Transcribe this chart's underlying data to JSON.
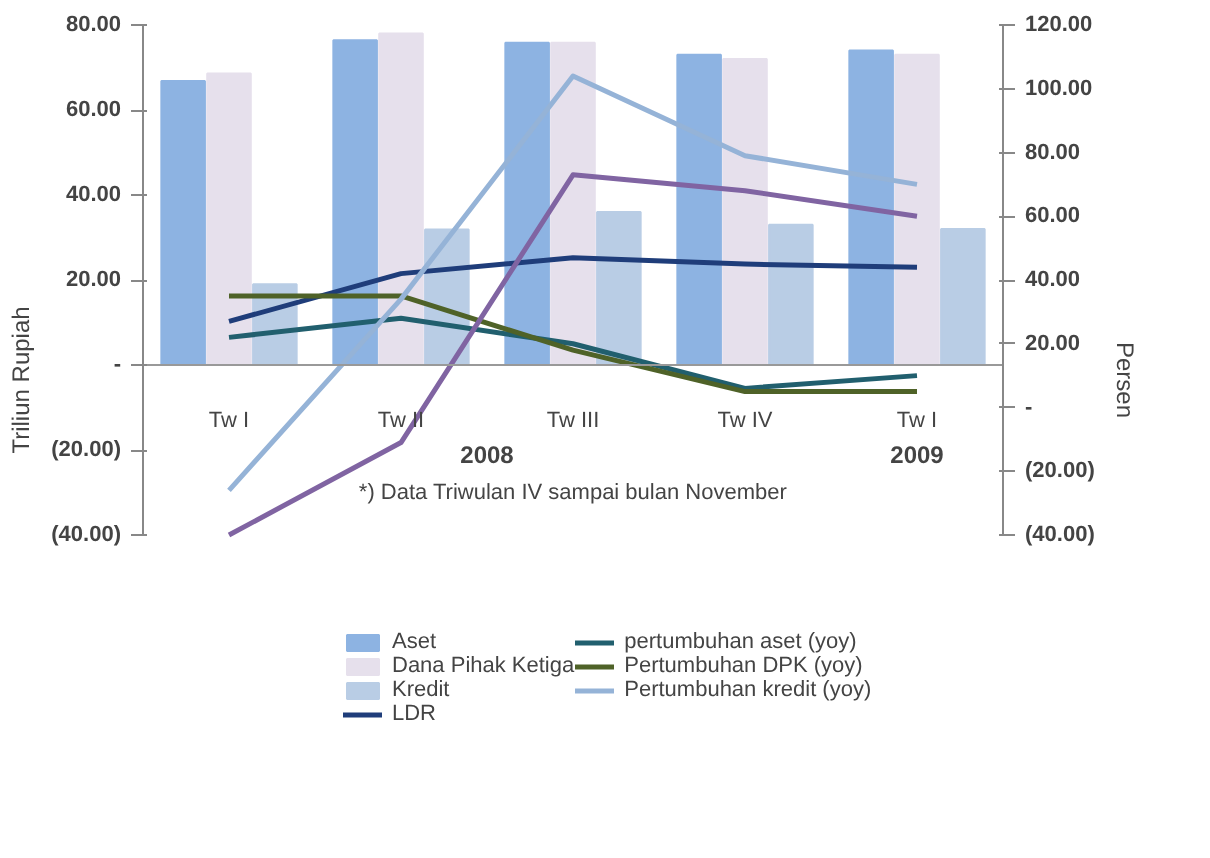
{
  "chart_data": {
    "type": "bar",
    "categories": [
      "Tw I",
      "Tw II",
      "Tw III",
      "Tw IV",
      "Tw I"
    ],
    "ylabel": "Triliun Rupiah",
    "y2label": "Persen",
    "ylim": [
      -40,
      80
    ],
    "yticks": [
      {
        "value": -40,
        "label": "(40.00)"
      },
      {
        "value": -20,
        "label": "(20.00)"
      },
      {
        "value": 0,
        "label": "-"
      },
      {
        "value": 20,
        "label": "20.00"
      },
      {
        "value": 40,
        "label": "40.00"
      },
      {
        "value": 60,
        "label": "60.00"
      },
      {
        "value": 80,
        "label": "80.00"
      }
    ],
    "y2lim": [
      -40,
      120
    ],
    "y2ticks": [
      {
        "value": -40,
        "label": "(40.00)"
      },
      {
        "value": -20,
        "label": "(20.00)"
      },
      {
        "value": 0,
        "label": "-"
      },
      {
        "value": 20,
        "label": "20.00"
      },
      {
        "value": 40,
        "label": "40.00"
      },
      {
        "value": 60,
        "label": "60.00"
      },
      {
        "value": 80,
        "label": "80.00"
      },
      {
        "value": 100,
        "label": "100.00"
      },
      {
        "value": 120,
        "label": "120.00"
      }
    ],
    "series": [
      {
        "name": "Aset",
        "color": "#8db3e2",
        "values": [
          66.8,
          76.4,
          75.8,
          73,
          74
        ]
      },
      {
        "name": "Dana Pihak Ketiga",
        "color": "#e6e0ec",
        "values": [
          68.6,
          78,
          75.8,
          72,
          73
        ]
      },
      {
        "name": "Kredit",
        "color": "#b9cde5",
        "values": [
          19,
          31.9,
          36,
          33,
          32
        ]
      },
      {
        "name": "LDR",
        "type": "line",
        "axis": "y2",
        "color": "#1f3d7a",
        "values": [
          27,
          42,
          47,
          45,
          44
        ]
      },
      {
        "name": "pertumbuhan aset (yoy)",
        "type": "line",
        "axis": "y2",
        "color": "#215f6e",
        "values": [
          22,
          28,
          20,
          6,
          10
        ]
      },
      {
        "name": "Pertumbuhan DPK (yoy)",
        "type": "line",
        "axis": "y2",
        "color": "#4f6228",
        "values": [
          35,
          35,
          18,
          5,
          5
        ]
      },
      {
        "name": "Pertumbuhan kredit (yoy)",
        "type": "line",
        "axis": "y2",
        "color": "#95b3d7",
        "values": [
          -26,
          34,
          104,
          79,
          70
        ]
      },
      {
        "type": "line",
        "axis": "y2",
        "color": "#8064a2",
        "values": [
          -40,
          -11,
          73,
          68,
          60
        ]
      }
    ],
    "annotations": [
      "2008",
      "2009",
      "*) Data Triwulan IV sampai bulan November"
    ],
    "legend": "bottom",
    "grid": false
  }
}
